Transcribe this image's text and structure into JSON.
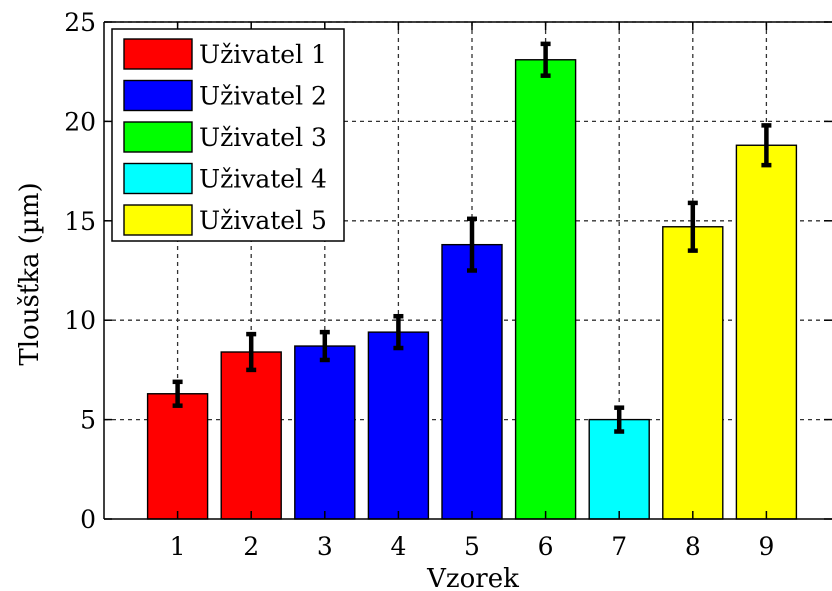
{
  "chart_data": {
    "type": "bar",
    "xlabel": "Vzorek",
    "ylabel": "Tloušťka (µm)",
    "ylim": [
      0,
      25
    ],
    "yticks": [
      0,
      5,
      10,
      15,
      20,
      25
    ],
    "grid": true,
    "legend_position": "top-left",
    "categories": [
      "1",
      "2",
      "3",
      "4",
      "5",
      "6",
      "7",
      "8",
      "9"
    ],
    "values": [
      6.3,
      8.4,
      8.7,
      9.4,
      13.8,
      23.1,
      5.0,
      14.7,
      18.8
    ],
    "errors": [
      0.6,
      0.9,
      0.7,
      0.8,
      1.3,
      0.8,
      0.6,
      1.2,
      1.0
    ],
    "bar_groups": [
      1,
      1,
      2,
      2,
      2,
      3,
      4,
      5,
      5
    ],
    "series": [
      {
        "name": "Uživatel 1",
        "color": "#ff0000"
      },
      {
        "name": "Uživatel 2",
        "color": "#0000ff"
      },
      {
        "name": "Uživatel 3",
        "color": "#00ff00"
      },
      {
        "name": "Uživatel 4",
        "color": "#00ffff"
      },
      {
        "name": "Uživatel 5",
        "color": "#ffff00"
      }
    ]
  }
}
